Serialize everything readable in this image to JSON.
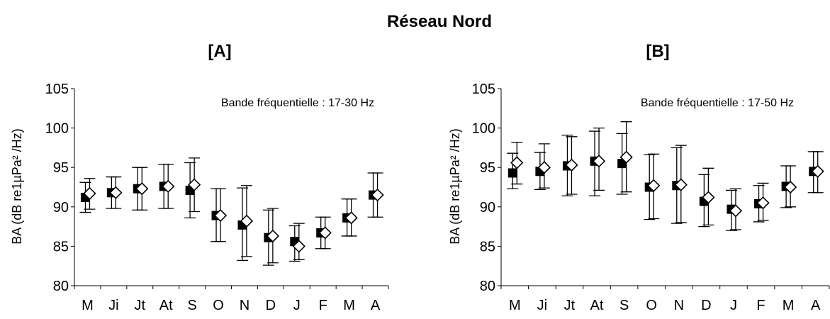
{
  "figure": {
    "title": "Réseau Nord"
  },
  "chart_data": [
    {
      "type": "scatter",
      "panel_label": "[A]",
      "annotation": "Bande fréquentielle : 17-30 Hz",
      "ylabel": "BA (dB re1µPa² /Hz)",
      "xlabel": "",
      "categories": [
        "M",
        "Ji",
        "Jt",
        "At",
        "S",
        "O",
        "N",
        "D",
        "J",
        "F",
        "M",
        "A"
      ],
      "ylim": [
        80,
        105
      ],
      "yticks": [
        80,
        85,
        90,
        95,
        100,
        105
      ],
      "grid": false,
      "series": [
        {
          "marker": "filled-square",
          "color": "#000000",
          "values": [
            91.2,
            91.8,
            92.3,
            92.6,
            92.1,
            88.9,
            87.7,
            86.1,
            85.6,
            86.7,
            88.6,
            91.5
          ],
          "err_low": [
            89.3,
            89.8,
            89.6,
            89.8,
            88.6,
            85.6,
            83.2,
            82.6,
            83.1,
            84.7,
            86.3,
            88.7
          ],
          "err_high": [
            93.1,
            93.8,
            95.0,
            95.4,
            95.6,
            92.3,
            92.4,
            89.6,
            87.6,
            88.7,
            91.0,
            94.3
          ]
        },
        {
          "marker": "open-diamond",
          "color": "#000000",
          "values": [
            91.7,
            91.8,
            92.3,
            92.6,
            92.8,
            88.9,
            88.2,
            86.3,
            85.0,
            86.7,
            88.6,
            91.5
          ],
          "err_low": [
            89.7,
            89.8,
            89.6,
            89.8,
            89.4,
            85.6,
            83.7,
            82.9,
            83.3,
            84.7,
            86.3,
            88.7
          ],
          "err_high": [
            93.6,
            93.8,
            95.0,
            95.4,
            96.2,
            92.3,
            92.7,
            89.8,
            87.9,
            88.7,
            91.0,
            94.3
          ]
        }
      ]
    },
    {
      "type": "scatter",
      "panel_label": "[B]",
      "annotation": "Bande fréquentielle : 17-50 Hz",
      "ylabel": "BA (dB re1µPa² /Hz)",
      "xlabel": "",
      "categories": [
        "M",
        "Ji",
        "Jt",
        "At",
        "S",
        "O",
        "N",
        "D",
        "J",
        "F",
        "M",
        "A"
      ],
      "ylim": [
        80,
        105
      ],
      "yticks": [
        80,
        85,
        90,
        95,
        100,
        105
      ],
      "grid": false,
      "series": [
        {
          "marker": "filled-square",
          "color": "#000000",
          "values": [
            94.3,
            94.5,
            95.2,
            95.8,
            95.5,
            92.5,
            92.7,
            90.7,
            89.7,
            90.4,
            92.6,
            94.5
          ],
          "err_low": [
            92.3,
            92.2,
            91.4,
            91.4,
            91.6,
            88.4,
            87.9,
            87.5,
            87.0,
            88.1,
            89.9,
            91.8
          ],
          "err_high": [
            96.8,
            96.9,
            99.1,
            99.6,
            99.3,
            96.6,
            97.5,
            94.1,
            92.1,
            92.7,
            95.2,
            97.0
          ]
        },
        {
          "marker": "open-diamond",
          "color": "#000000",
          "values": [
            95.6,
            95.0,
            95.3,
            95.8,
            96.3,
            92.7,
            92.8,
            91.2,
            89.5,
            90.5,
            92.5,
            94.5
          ],
          "err_low": [
            92.9,
            92.4,
            91.6,
            92.1,
            91.9,
            88.5,
            88.0,
            87.7,
            87.1,
            88.3,
            90.0,
            91.8
          ],
          "err_high": [
            98.2,
            98.0,
            98.9,
            100.0,
            100.8,
            96.7,
            97.8,
            94.9,
            92.3,
            93.0,
            95.2,
            97.0
          ]
        }
      ]
    }
  ]
}
